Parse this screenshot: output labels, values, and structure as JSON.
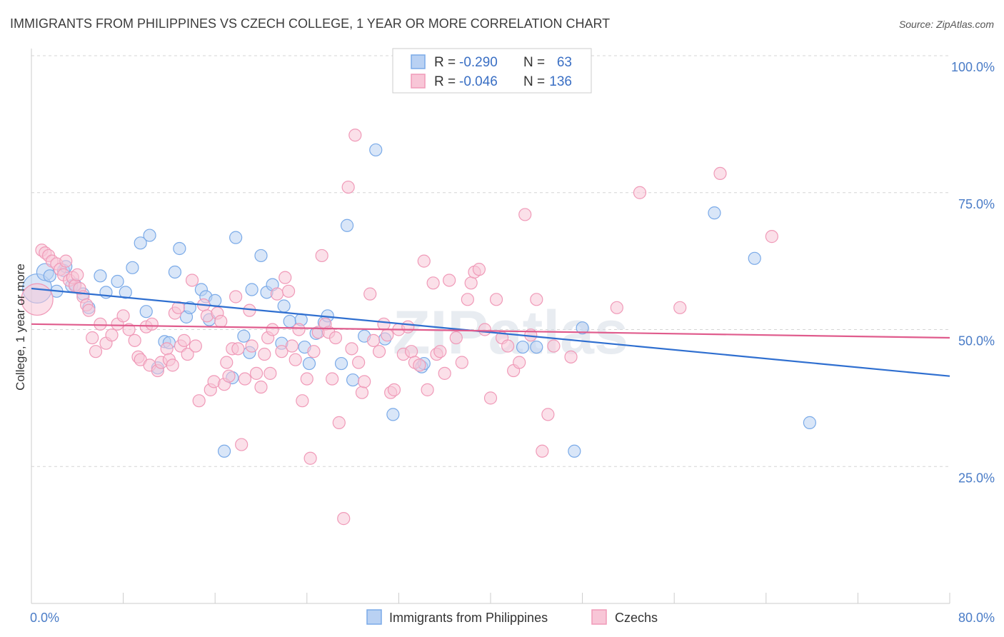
{
  "chart_data": {
    "type": "scatter",
    "title": "IMMIGRANTS FROM PHILIPPINES VS CZECH COLLEGE, 1 YEAR OR MORE CORRELATION CHART",
    "source": "Source: ZipAtlas.com",
    "watermark": "ZIPatlas",
    "xlabel": "",
    "ylabel": "College, 1 year or more",
    "xlim": [
      0,
      80
    ],
    "ylim": [
      0,
      100
    ],
    "x_tick_labels": [
      {
        "value": 0,
        "label": "0.0%"
      },
      {
        "value": 80,
        "label": "80.0%"
      }
    ],
    "y_tick_labels": [
      {
        "value": 25,
        "label": "25.0%"
      },
      {
        "value": 50,
        "label": "50.0%"
      },
      {
        "value": 75,
        "label": "75.0%"
      },
      {
        "value": 100,
        "label": "100.0%"
      }
    ],
    "legend": {
      "rows": [
        {
          "r_label": "R =",
          "r_value": "-0.290",
          "n_label": "N =",
          "n_value": "63"
        },
        {
          "r_label": "R =",
          "r_value": "-0.046",
          "n_label": "N =",
          "n_value": "136"
        }
      ]
    },
    "series": [
      {
        "name": "Immigrants from Philippines",
        "color": "#7aaae8",
        "fill": "#b9d1f3",
        "line_color": "#2f6fd0",
        "trend": {
          "x0": 0,
          "y0": 57.5,
          "x1": 80,
          "y1": 41.5
        },
        "points": [
          [
            0.5,
            57.5
          ],
          [
            1.2,
            60.5
          ],
          [
            1.6,
            59.8
          ],
          [
            2.2,
            57.0
          ],
          [
            2.8,
            60.8
          ],
          [
            3.0,
            61.5
          ],
          [
            3.5,
            58.0
          ],
          [
            3.8,
            58.2
          ],
          [
            4.5,
            56.5
          ],
          [
            5.0,
            54.0
          ],
          [
            6.0,
            59.8
          ],
          [
            6.5,
            56.8
          ],
          [
            7.5,
            58.8
          ],
          [
            8.2,
            56.8
          ],
          [
            8.8,
            61.3
          ],
          [
            9.5,
            65.8
          ],
          [
            10.0,
            53.3
          ],
          [
            10.3,
            67.2
          ],
          [
            11.0,
            43.0
          ],
          [
            11.6,
            47.8
          ],
          [
            12.0,
            47.6
          ],
          [
            12.5,
            60.5
          ],
          [
            12.9,
            64.8
          ],
          [
            13.5,
            52.3
          ],
          [
            13.8,
            54.0
          ],
          [
            14.8,
            57.3
          ],
          [
            15.2,
            56.0
          ],
          [
            15.5,
            51.8
          ],
          [
            16.0,
            55.3
          ],
          [
            16.8,
            27.8
          ],
          [
            17.5,
            41.2
          ],
          [
            17.8,
            66.8
          ],
          [
            18.5,
            48.8
          ],
          [
            19.0,
            45.8
          ],
          [
            19.2,
            57.3
          ],
          [
            20.0,
            63.5
          ],
          [
            20.5,
            56.8
          ],
          [
            21.0,
            58.2
          ],
          [
            21.8,
            47.5
          ],
          [
            22.0,
            54.3
          ],
          [
            22.5,
            51.5
          ],
          [
            23.5,
            51.8
          ],
          [
            23.8,
            46.8
          ],
          [
            24.2,
            43.8
          ],
          [
            24.8,
            49.3
          ],
          [
            25.5,
            51.3
          ],
          [
            25.8,
            52.5
          ],
          [
            27.0,
            43.8
          ],
          [
            27.5,
            69.0
          ],
          [
            28.0,
            40.8
          ],
          [
            29.0,
            48.8
          ],
          [
            30.0,
            82.8
          ],
          [
            30.8,
            48.3
          ],
          [
            31.5,
            34.5
          ],
          [
            34.0,
            43.2
          ],
          [
            34.2,
            43.8
          ],
          [
            42.8,
            46.8
          ],
          [
            44.0,
            46.8
          ],
          [
            47.3,
            27.8
          ],
          [
            48.0,
            50.3
          ],
          [
            59.5,
            71.3
          ],
          [
            63.0,
            63.0
          ],
          [
            67.8,
            33.0
          ]
        ],
        "sizes": {
          "0": 2.4,
          "1": 1.4
        }
      },
      {
        "name": "Czechs",
        "color": "#f09ab8",
        "fill": "#f8c6d7",
        "line_color": "#e05c8d",
        "trend": {
          "x0": 0,
          "y0": 51.0,
          "x1": 80,
          "y1": 48.5
        },
        "points": [
          [
            0.5,
            55.5
          ],
          [
            0.9,
            64.5
          ],
          [
            1.2,
            64.0
          ],
          [
            1.5,
            63.5
          ],
          [
            1.8,
            62.5
          ],
          [
            2.2,
            62.0
          ],
          [
            2.5,
            61.0
          ],
          [
            2.8,
            60.0
          ],
          [
            3.0,
            62.5
          ],
          [
            3.3,
            59.0
          ],
          [
            3.6,
            59.5
          ],
          [
            3.8,
            58.0
          ],
          [
            4.0,
            60.0
          ],
          [
            4.2,
            57.5
          ],
          [
            4.5,
            56.0
          ],
          [
            4.8,
            54.5
          ],
          [
            5.0,
            53.5
          ],
          [
            5.3,
            48.5
          ],
          [
            5.6,
            46.0
          ],
          [
            6.0,
            51.0
          ],
          [
            6.5,
            47.5
          ],
          [
            7.0,
            49.0
          ],
          [
            7.5,
            51.0
          ],
          [
            8.0,
            52.5
          ],
          [
            8.5,
            50.0
          ],
          [
            9.0,
            48.0
          ],
          [
            9.3,
            45.0
          ],
          [
            9.5,
            44.5
          ],
          [
            10.0,
            50.5
          ],
          [
            10.3,
            43.5
          ],
          [
            10.5,
            51.0
          ],
          [
            11.0,
            42.5
          ],
          [
            11.3,
            44.0
          ],
          [
            11.8,
            46.5
          ],
          [
            12.0,
            44.5
          ],
          [
            12.3,
            43.5
          ],
          [
            12.5,
            53.0
          ],
          [
            12.8,
            54.0
          ],
          [
            13.0,
            47.0
          ],
          [
            13.3,
            48.0
          ],
          [
            13.6,
            45.5
          ],
          [
            14.0,
            59.0
          ],
          [
            14.3,
            47.0
          ],
          [
            14.6,
            37.0
          ],
          [
            15.0,
            54.5
          ],
          [
            15.3,
            52.5
          ],
          [
            15.6,
            39.0
          ],
          [
            15.9,
            40.5
          ],
          [
            16.2,
            53.0
          ],
          [
            16.5,
            51.5
          ],
          [
            16.8,
            40.0
          ],
          [
            17.0,
            44.0
          ],
          [
            17.2,
            41.5
          ],
          [
            17.5,
            46.5
          ],
          [
            17.8,
            56.0
          ],
          [
            18.0,
            46.5
          ],
          [
            18.3,
            29.0
          ],
          [
            18.6,
            41.0
          ],
          [
            19.0,
            53.5
          ],
          [
            19.2,
            47.0
          ],
          [
            19.6,
            42.0
          ],
          [
            20.0,
            39.5
          ],
          [
            20.3,
            45.5
          ],
          [
            20.6,
            48.5
          ],
          [
            20.8,
            42.0
          ],
          [
            21.0,
            50.0
          ],
          [
            21.4,
            56.5
          ],
          [
            21.8,
            46.0
          ],
          [
            22.1,
            59.5
          ],
          [
            22.4,
            57.0
          ],
          [
            22.7,
            47.0
          ],
          [
            23.0,
            44.5
          ],
          [
            23.3,
            50.0
          ],
          [
            23.6,
            37.0
          ],
          [
            24.0,
            41.0
          ],
          [
            24.3,
            26.5
          ],
          [
            24.6,
            46.0
          ],
          [
            25.0,
            49.5
          ],
          [
            25.3,
            63.5
          ],
          [
            25.6,
            51.0
          ],
          [
            25.9,
            49.5
          ],
          [
            26.2,
            41.0
          ],
          [
            26.5,
            48.5
          ],
          [
            26.8,
            33.0
          ],
          [
            27.2,
            15.5
          ],
          [
            27.6,
            76.0
          ],
          [
            27.9,
            46.5
          ],
          [
            28.2,
            85.5
          ],
          [
            28.5,
            44.0
          ],
          [
            28.8,
            38.5
          ],
          [
            29.0,
            40.5
          ],
          [
            29.5,
            56.5
          ],
          [
            29.8,
            48.0
          ],
          [
            30.3,
            46.0
          ],
          [
            30.7,
            51.0
          ],
          [
            31.0,
            49.0
          ],
          [
            31.3,
            38.5
          ],
          [
            31.6,
            39.0
          ],
          [
            32.0,
            50.0
          ],
          [
            32.4,
            45.5
          ],
          [
            32.8,
            50.5
          ],
          [
            33.1,
            46.0
          ],
          [
            33.4,
            44.0
          ],
          [
            33.8,
            43.5
          ],
          [
            34.2,
            62.5
          ],
          [
            34.5,
            39.0
          ],
          [
            35.0,
            58.5
          ],
          [
            35.3,
            45.5
          ],
          [
            35.6,
            46.0
          ],
          [
            36.0,
            42.0
          ],
          [
            36.4,
            59.0
          ],
          [
            37.0,
            48.5
          ],
          [
            37.5,
            44.0
          ],
          [
            38.0,
            55.5
          ],
          [
            38.3,
            58.5
          ],
          [
            38.6,
            60.5
          ],
          [
            39.0,
            61.0
          ],
          [
            39.5,
            50.0
          ],
          [
            40.0,
            37.5
          ],
          [
            40.5,
            55.5
          ],
          [
            41.0,
            48.5
          ],
          [
            41.5,
            47.0
          ],
          [
            42.0,
            42.5
          ],
          [
            42.5,
            44.0
          ],
          [
            43.0,
            71.0
          ],
          [
            43.5,
            49.0
          ],
          [
            44.0,
            55.5
          ],
          [
            44.5,
            27.8
          ],
          [
            45.0,
            34.5
          ],
          [
            45.5,
            47.0
          ],
          [
            47.0,
            45.0
          ],
          [
            51.0,
            54.0
          ],
          [
            53.0,
            75.0
          ],
          [
            56.5,
            54.0
          ],
          [
            60.0,
            78.5
          ],
          [
            64.5,
            67.0
          ]
        ],
        "sizes": {
          "0": 2.6
        }
      }
    ]
  },
  "colors": {
    "grid": "#d5d5d5",
    "axis": "#cccccc",
    "tick_label": "#4a7cc7"
  }
}
